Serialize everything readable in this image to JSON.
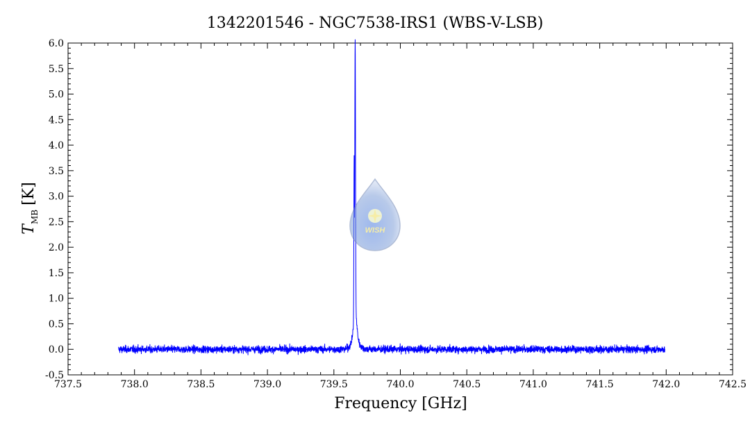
{
  "chart_data": {
    "type": "line",
    "title": "1342201546 - NGC7538-IRS1 (WBS-V-LSB)",
    "xlabel": "Frequency [GHz]",
    "ylabel_main": "T",
    "ylabel_sub": "MB",
    "ylabel_unit": "[K]",
    "xlim": [
      737.5,
      742.5
    ],
    "ylim": [
      -0.5,
      6.0
    ],
    "xticks": [
      "737.5",
      "738.0",
      "738.5",
      "739.0",
      "739.5",
      "740.0",
      "740.5",
      "741.0",
      "741.5",
      "742.0",
      "742.5"
    ],
    "yticks": [
      "-0.5",
      "0.0",
      "0.5",
      "1.0",
      "1.5",
      "2.0",
      "2.5",
      "3.0",
      "3.5",
      "4.0",
      "4.5",
      "5.0",
      "5.5",
      "6.0"
    ],
    "grid": false,
    "line_color": "#0000ff",
    "series": [
      {
        "x_range": [
          737.88,
          741.99
        ],
        "baseline": 0.0,
        "noise_rms": 0.06,
        "peak": {
          "x": 739.66,
          "y": 5.35
        },
        "secondary_peak": {
          "x": 739.652,
          "y": 4.1
        }
      }
    ]
  },
  "watermark": {
    "text": "WISH",
    "kind": "logo",
    "colors": {
      "drop": "#7f9fd8",
      "star": "#f0e060"
    }
  }
}
